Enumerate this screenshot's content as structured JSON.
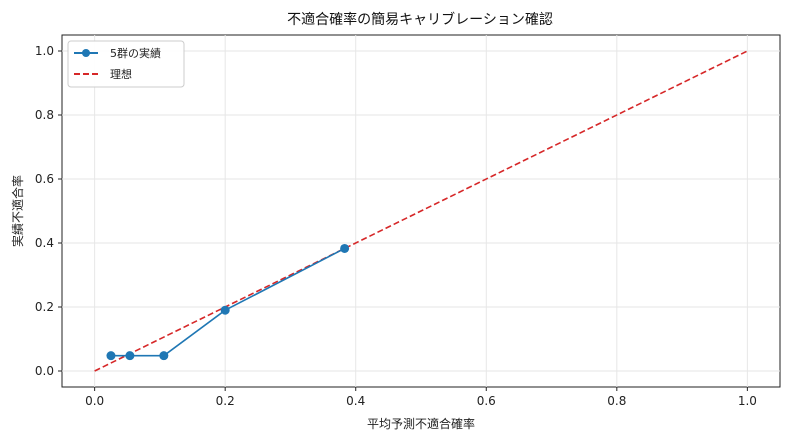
{
  "chart_data": {
    "type": "line",
    "title": "不適合確率の簡易キャリブレーション確認",
    "xlabel": "平均予測不適合確率",
    "ylabel": "実績不適合率",
    "xlim": [
      -0.05,
      1.05
    ],
    "ylim": [
      -0.05,
      1.05
    ],
    "xticks": [
      0.0,
      0.2,
      0.4,
      0.6,
      0.8,
      1.0
    ],
    "yticks": [
      0.0,
      0.2,
      0.4,
      0.6,
      0.8,
      1.0
    ],
    "tick_labels": [
      "0.0",
      "0.2",
      "0.4",
      "0.6",
      "0.8",
      "1.0"
    ],
    "grid": true,
    "legend_position": "top-left",
    "series": [
      {
        "name": "5群の実績",
        "color": "#1f77b4",
        "style": "solid-with-markers",
        "x": [
          0.025,
          0.054,
          0.106,
          0.2,
          0.383
        ],
        "y": [
          0.048,
          0.048,
          0.048,
          0.19,
          0.383
        ]
      },
      {
        "name": "理想",
        "color": "#d62728",
        "style": "dashed",
        "x": [
          0.0,
          1.0
        ],
        "y": [
          0.0,
          1.0
        ]
      }
    ]
  }
}
